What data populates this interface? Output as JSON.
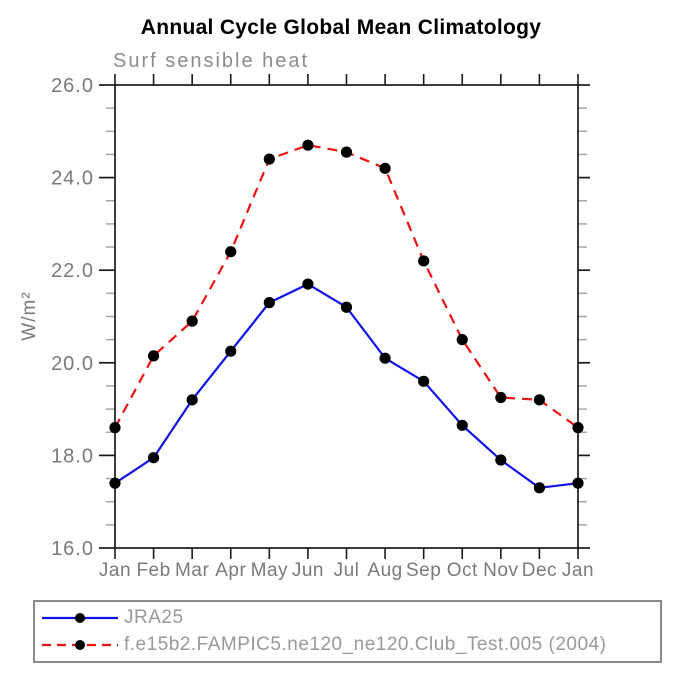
{
  "header": {
    "title": "Annual Cycle Global Mean Climatology",
    "subtitle": "Surf sensible heat"
  },
  "chart_data": {
    "type": "line",
    "title": "Annual Cycle Global Mean Climatology",
    "subtitle": "Surf sensible heat",
    "xlabel": "",
    "ylabel": "W/m²",
    "ylim": [
      16.0,
      26.0
    ],
    "y_major_step": 2.0,
    "y_minor_step": 0.5,
    "y_tick_labels": [
      "16.0",
      "18.0",
      "20.0",
      "22.0",
      "24.0",
      "26.0"
    ],
    "categories": [
      "Jan",
      "Feb",
      "Mar",
      "Apr",
      "May",
      "Jun",
      "Jul",
      "Aug",
      "Sep",
      "Oct",
      "Nov",
      "Dec",
      "Jan"
    ],
    "series": [
      {
        "name": "JRA25",
        "color": "#1111ee",
        "line_style": "solid",
        "marker": "black-dot",
        "values": [
          17.4,
          17.95,
          19.2,
          20.25,
          21.3,
          21.7,
          21.2,
          20.1,
          19.6,
          18.65,
          17.9,
          17.3,
          17.4
        ]
      },
      {
        "name": "f.e15b2.FAMPIC5.ne120_ne120.Club_Test.005 (2004)",
        "color": "#ee1111",
        "line_style": "dashed",
        "marker": "black-dot",
        "values": [
          18.6,
          20.15,
          20.9,
          22.4,
          24.4,
          24.7,
          24.55,
          24.2,
          22.2,
          20.5,
          19.25,
          19.2,
          18.6
        ]
      }
    ],
    "grid": false,
    "legend_position": "bottom"
  },
  "colors": {
    "frame": "#1a1a1a",
    "major_tick": "#1a1a1a",
    "minor_tick": "#a6a6a6",
    "tick_label": "#7a7a7a",
    "marker": "#000000",
    "title_text": "#000000",
    "subtitle_text": "#8c8c8c",
    "legend_text": "#999999",
    "legend_border": "#8a8a8a"
  }
}
